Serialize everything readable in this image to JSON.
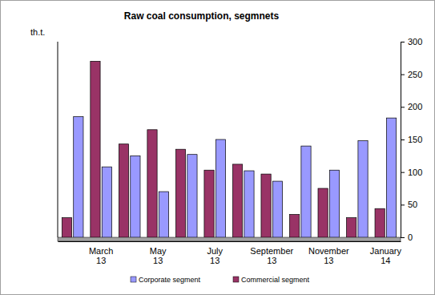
{
  "chart_data": {
    "type": "bar",
    "title": "Raw coal consumption, segmnets",
    "ylabel": "th.t.",
    "categories": [
      null,
      "March 13",
      null,
      "May 13",
      null,
      "July 13",
      null,
      "September 13",
      null,
      "November 13",
      null,
      "January 14"
    ],
    "series": [
      {
        "name": "Corporate segment",
        "color": "#9999ff",
        "values": [
          185,
          108,
          125,
          70,
          127,
          150,
          102,
          86,
          140,
          103,
          148,
          183
        ]
      },
      {
        "name": "Commercial segment",
        "color": "#993366",
        "values": [
          30,
          270,
          143,
          165,
          135,
          103,
          112,
          97,
          35,
          75,
          30,
          44
        ]
      }
    ],
    "ylim": [
      0,
      300
    ],
    "yticks": [
      0,
      50,
      100,
      150,
      200,
      250,
      300
    ],
    "grid": false,
    "legend": "bottom"
  }
}
